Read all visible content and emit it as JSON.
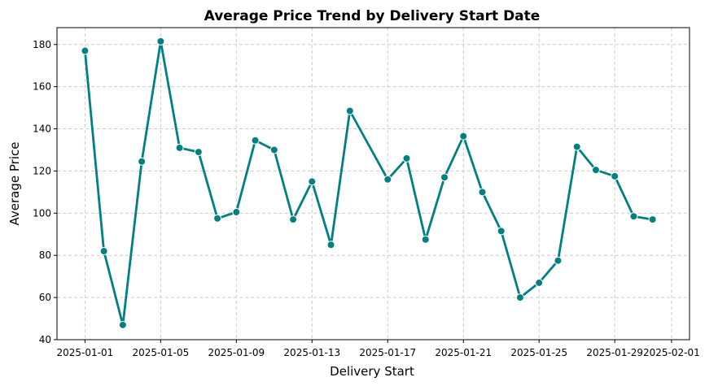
{
  "chart_data": {
    "type": "line",
    "title": "Average Price Trend by Delivery Start Date",
    "xlabel": "Delivery Start",
    "ylabel": "Average Price",
    "ylim": [
      40,
      188
    ],
    "xlim": [
      "2024-12-30",
      "2025-02-01"
    ],
    "grid": true,
    "line_color": "#008080",
    "marker_edge_color": "#ffffff",
    "x_ticks": [
      "2025-01-01",
      "2025-01-05",
      "2025-01-09",
      "2025-01-13",
      "2025-01-17",
      "2025-01-21",
      "2025-01-25",
      "2025-01-29",
      "2025-02-01"
    ],
    "y_ticks": [
      40,
      60,
      80,
      100,
      120,
      140,
      160,
      180
    ],
    "series": [
      {
        "x": [
          "2025-01-01",
          "2025-01-02",
          "2025-01-03",
          "2025-01-04",
          "2025-01-05",
          "2025-01-06",
          "2025-01-07",
          "2025-01-08",
          "2025-01-09",
          "2025-01-10",
          "2025-01-11",
          "2025-01-12",
          "2025-01-13",
          "2025-01-14",
          "2025-01-15",
          "2025-01-17",
          "2025-01-18",
          "2025-01-19",
          "2025-01-20",
          "2025-01-21",
          "2025-01-22",
          "2025-01-23",
          "2025-01-24",
          "2025-01-25",
          "2025-01-26",
          "2025-01-27",
          "2025-01-28",
          "2025-01-29",
          "2025-01-30",
          "2025-01-31"
        ],
        "y": [
          177,
          82,
          47,
          124.5,
          181.5,
          131,
          129,
          97.5,
          100.5,
          134.5,
          130,
          97,
          115,
          85,
          148.5,
          116,
          126,
          87.5,
          117,
          136.5,
          110,
          91.5,
          60,
          67,
          77.5,
          131.5,
          120.5,
          117.5,
          98.5,
          97
        ]
      }
    ]
  }
}
